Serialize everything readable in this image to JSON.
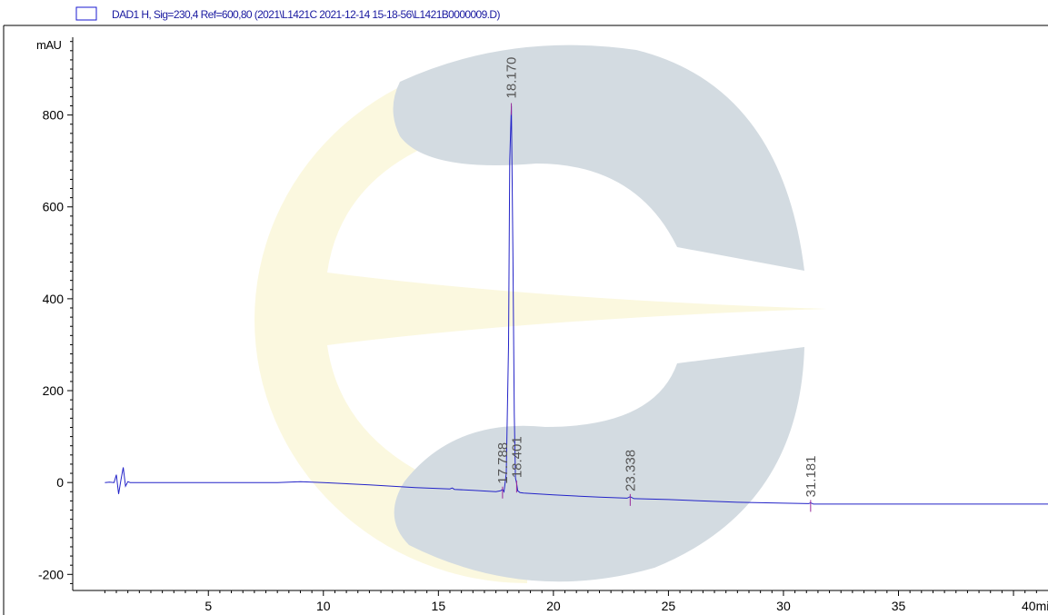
{
  "chart_data": {
    "type": "line",
    "legend": "DAD1 H, Sig=230,4 Ref=600,80 (2021\\L1421C 2021-12-14 15-18-56\\L1421B0000009.D)",
    "ylabel": "mAU",
    "xlabel_partial": "40mi",
    "xlim": [
      -3.9,
      41.5
    ],
    "ylim": [
      -235,
      995
    ],
    "x_ticks": [
      5,
      10,
      15,
      20,
      25,
      30,
      35,
      40
    ],
    "x_tick_labels": [
      "5",
      "10",
      "15",
      "20",
      "25",
      "30",
      "35"
    ],
    "y_ticks": [
      -200,
      0,
      200,
      400,
      600,
      800
    ],
    "y_tick_labels": [
      "-200",
      "0",
      "200",
      "400",
      "600",
      "800"
    ],
    "series": [
      {
        "color": "#2323c8",
        "x": [
          0.5,
          0.7,
          0.9,
          1.0,
          1.1,
          1.2,
          1.3,
          1.4,
          1.5,
          1.6,
          1.8,
          2.5,
          4,
          6,
          8,
          9,
          10,
          12,
          14,
          15.5,
          15.6,
          15.7,
          16.5,
          17.5,
          17.7,
          17.788,
          17.85,
          17.95,
          18.05,
          18.1,
          18.17,
          18.24,
          18.3,
          18.35,
          18.401,
          18.45,
          18.55,
          18.7,
          20,
          22,
          23.2,
          23.338,
          23.5,
          25,
          28,
          30,
          31.1,
          31.181,
          31.3,
          33,
          35,
          38,
          41.5
        ],
        "y": [
          0,
          1,
          0,
          17,
          -25,
          6,
          33,
          -8,
          2,
          0,
          0,
          0,
          0,
          0,
          0,
          2,
          0,
          -5,
          -11,
          -14,
          -12,
          -15,
          -17,
          -20,
          -18,
          -15,
          -20,
          20,
          300,
          700,
          820,
          500,
          150,
          10,
          -2,
          -18,
          -22,
          -23,
          -27,
          -32,
          -34,
          -31,
          -35,
          -37,
          -43,
          -45,
          -46,
          -44,
          -47,
          -47,
          -47,
          -47,
          -47
        ]
      }
    ],
    "peaks": [
      {
        "rt": "17.788",
        "x": 17.788,
        "y": -15
      },
      {
        "rt": "18.170",
        "x": 18.17,
        "y": 820
      },
      {
        "rt": "18.401",
        "x": 18.401,
        "y": -2
      },
      {
        "rt": "23.338",
        "x": 23.338,
        "y": -31
      },
      {
        "rt": "31.181",
        "x": 31.181,
        "y": -44
      }
    ],
    "grid": false,
    "colors": {
      "trace": "#2323c8",
      "marker": "#9a2a9a",
      "legend_box": "#1a1ad0",
      "watermark_gray": "#d3dbe1",
      "watermark_yellow": "#fbf8df"
    }
  }
}
